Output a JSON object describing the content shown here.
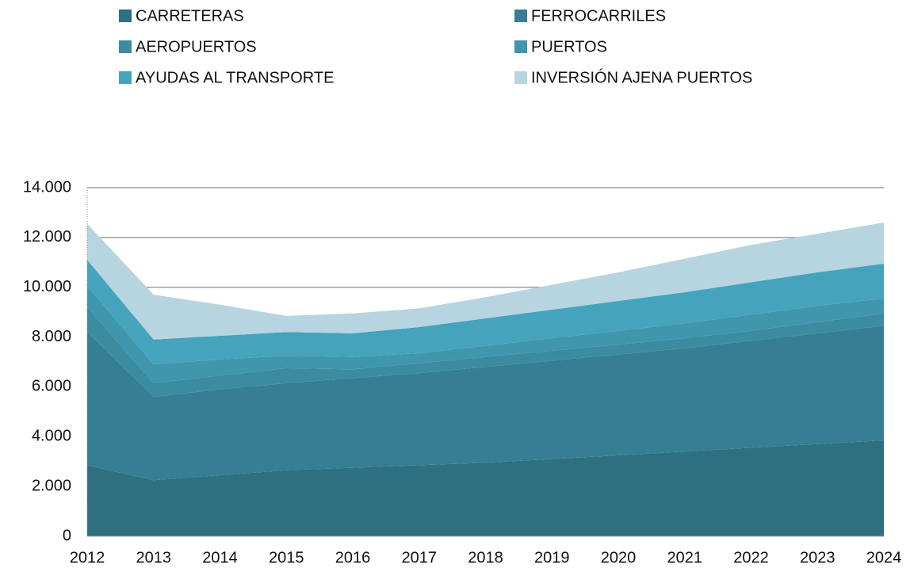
{
  "chart_data": {
    "type": "stacked_area",
    "categories": [
      "2012",
      "2013",
      "2014",
      "2015",
      "2016",
      "2017",
      "2018",
      "2019",
      "2020",
      "2021",
      "2022",
      "2023",
      "2024"
    ],
    "series": [
      {
        "name": "CARRETERAS",
        "color": "#2e7080",
        "values": [
          2850,
          2250,
          2450,
          2650,
          2750,
          2850,
          2950,
          3100,
          3250,
          3400,
          3550,
          3700,
          3850
        ]
      },
      {
        "name": "FERROCARRILES",
        "color": "#367f93",
        "values": [
          5350,
          3350,
          3450,
          3500,
          3600,
          3700,
          3850,
          3950,
          4050,
          4150,
          4300,
          4450,
          4600
        ]
      },
      {
        "name": "AEROPUERTOS",
        "color": "#3b8ca0",
        "values": [
          1000,
          550,
          550,
          600,
          350,
          400,
          400,
          400,
          400,
          400,
          400,
          450,
          500
        ]
      },
      {
        "name": "PUERTOS",
        "color": "#3f96ad",
        "values": [
          850,
          750,
          650,
          500,
          500,
          400,
          450,
          500,
          550,
          600,
          650,
          650,
          600
        ]
      },
      {
        "name": "AYUDAS AL TRANSPORTE",
        "color": "#45a3bd",
        "values": [
          1050,
          1000,
          950,
          950,
          950,
          1050,
          1100,
          1150,
          1200,
          1250,
          1300,
          1350,
          1400
        ]
      },
      {
        "name": "INVERSIÓN AJENA PUERTOS",
        "color": "#b6d5e1",
        "values": [
          1450,
          1800,
          1250,
          650,
          800,
          750,
          850,
          1000,
          1150,
          1350,
          1500,
          1550,
          1650
        ]
      }
    ],
    "ylim": [
      0,
      14000
    ],
    "yticks": [
      0,
      {
        "value": 2000,
        "label": "2.000"
      },
      {
        "value": 4000,
        "label": "4.000"
      },
      {
        "value": 6000,
        "label": "6.000"
      },
      {
        "value": 8000,
        "label": "8.000"
      },
      {
        "value": 10000,
        "label": "10.000"
      },
      {
        "value": 12000,
        "label": "12.000"
      },
      {
        "value": 14000,
        "label": "14.000"
      }
    ],
    "grid": true,
    "legend": "top"
  }
}
